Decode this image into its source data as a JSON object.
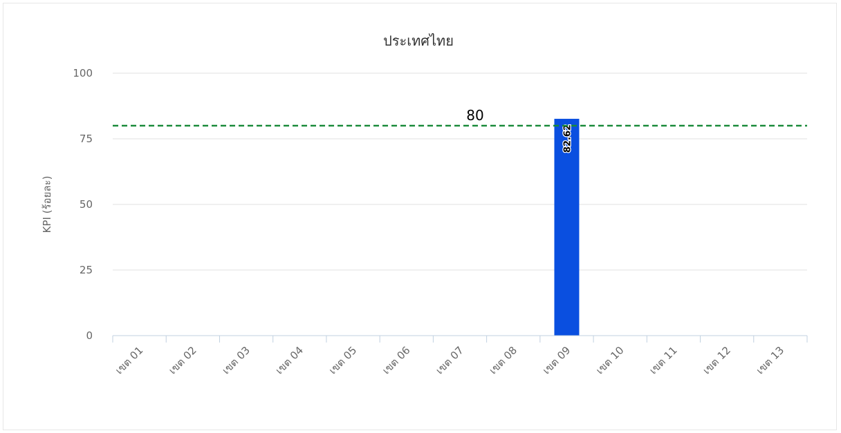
{
  "chart_data": {
    "type": "bar",
    "title": "ประเทศไทย",
    "ylabel": "KPI (ร้อยละ)",
    "xlabel": "",
    "ylim": [
      0,
      100
    ],
    "yticks": [
      0,
      25,
      50,
      75,
      100
    ],
    "categories": [
      "เขต 01",
      "เขต 02",
      "เขต 03",
      "เขต 04",
      "เขต 05",
      "เขต 06",
      "เขต 07",
      "เขต 08",
      "เขต 09",
      "เขต 10",
      "เขต 11",
      "เขต 12",
      "เขต 13"
    ],
    "values": [
      0,
      0,
      0,
      0,
      0,
      0,
      0,
      0,
      82.62,
      0,
      0,
      0,
      0
    ],
    "data_labels": [
      "",
      "",
      "",
      "",
      "",
      "",
      "",
      "",
      "82.62",
      "",
      "",
      "",
      ""
    ],
    "reference_line": {
      "value": 80,
      "label": "80",
      "color": "#1a8a3a",
      "style": "dashed"
    },
    "bar_color": "#0a4fe0",
    "grid": true,
    "legend": "none"
  }
}
